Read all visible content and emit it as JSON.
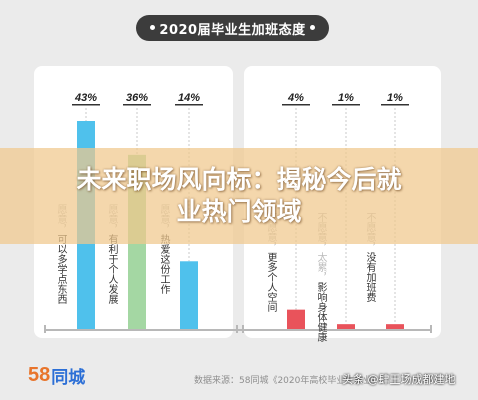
{
  "title": "2020届毕业生加班态度",
  "colors": {
    "willing": "#4fc1ec",
    "willing_mid": "#a4d7a3",
    "unwilling": "#e9535b",
    "banner": "#f0c88c"
  },
  "chart_data": {
    "type": "bar",
    "title": "2020届毕业生加班态度",
    "groups": [
      {
        "name": "",
        "categories": [
          {
            "prefix": "愿意，",
            "text": "可以多学点东西",
            "value": 43,
            "label": "43%"
          },
          {
            "prefix": "愿意，",
            "text": "有利于个人发展",
            "value": 36,
            "label": "36%"
          },
          {
            "prefix": "愿意，",
            "text": "热爱这份工作",
            "value": 14,
            "label": "14%"
          }
        ]
      },
      {
        "name": "",
        "categories": [
          {
            "prefix": "不愿意，",
            "text": "更多个人空间",
            "value": 4,
            "label": "4%"
          },
          {
            "prefix": "不愿意，太累，",
            "text": "影响身体健康",
            "value": 1,
            "label": "1%"
          },
          {
            "prefix": "不愿意，",
            "text": "没有加班费",
            "value": 1,
            "label": "1%"
          }
        ]
      }
    ],
    "ylim": [
      0,
      43
    ],
    "grid": false
  },
  "banner": {
    "line1": "未来职场风向标：揭秘今后就",
    "line2": "业热门领域"
  },
  "footer": {
    "logo_number": "58",
    "logo_text": "同城",
    "source": "数据来源：58同城《2020年高校毕业生就业报告》",
    "watermark": "头条 @肆王场成都建地"
  }
}
